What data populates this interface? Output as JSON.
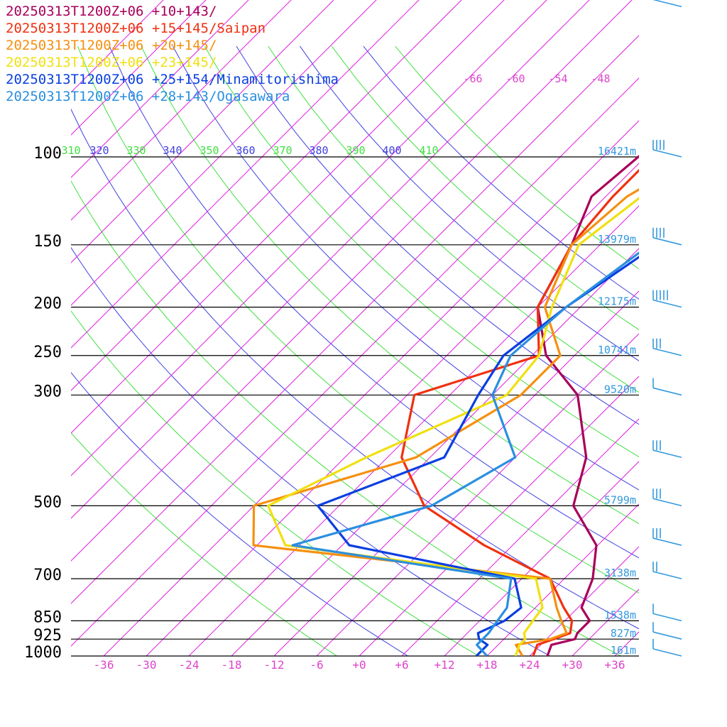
{
  "chart_data": {
    "type": "line",
    "title": "",
    "xlabel": "",
    "ylabel": "",
    "xlim": [
      -38,
      40
    ],
    "y_scale": "log-pressure",
    "pressure_levels": [
      {
        "p": 100,
        "label": "100",
        "height": "16421m"
      },
      {
        "p": 150,
        "label": "150",
        "height": "13979m"
      },
      {
        "p": 200,
        "label": "200",
        "height": "12175m"
      },
      {
        "p": 250,
        "label": "250",
        "height": "10741m"
      },
      {
        "p": 300,
        "label": "300",
        "height": "9520m"
      },
      {
        "p": 500,
        "label": "500",
        "height": "5799m"
      },
      {
        "p": 700,
        "label": "700",
        "height": "3138m"
      },
      {
        "p": 850,
        "label": "850",
        "height": "1538m"
      },
      {
        "p": 925,
        "label": "925",
        "height": "827m"
      },
      {
        "p": 1000,
        "label": "1000",
        "height": "161m"
      }
    ],
    "x_ticks": [
      {
        "v": -36,
        "label": "-36"
      },
      {
        "v": -30,
        "label": "-30"
      },
      {
        "v": -24,
        "label": "-24"
      },
      {
        "v": -18,
        "label": "-18"
      },
      {
        "v": -12,
        "label": "-12"
      },
      {
        "v": -6,
        "label": "-6"
      },
      {
        "v": 0,
        "label": "+0"
      },
      {
        "v": 6,
        "label": "+6"
      },
      {
        "v": 12,
        "label": "+12"
      },
      {
        "v": 18,
        "label": "+18"
      },
      {
        "v": 24,
        "label": "+24"
      },
      {
        "v": 30,
        "label": "+30"
      },
      {
        "v": 36,
        "label": "+36"
      }
    ],
    "isotherm_top_labels": [
      "-66",
      "-60",
      "-54",
      "-48"
    ],
    "theta_labels": [
      "310",
      "320",
      "330",
      "340",
      "350",
      "360",
      "370",
      "380",
      "390",
      "400",
      "410"
    ],
    "colors": {
      "isotherm": "#e020e0",
      "theta_green": "#40e040",
      "theta_blue": "#4040e0",
      "isobar": "#000000",
      "height_label": "#3399dd",
      "wind_barb": "#3399dd",
      "tick_label": "#dd44cc"
    },
    "series": [
      {
        "name": "20250313T1200Z+06 +10+143/",
        "color": "#a8005a",
        "points": [
          [
            1000,
            26.5
          ],
          [
            950,
            25.5
          ],
          [
            925,
            28
          ],
          [
            900,
            27.5
          ],
          [
            850,
            27.5
          ],
          [
            800,
            24.5
          ],
          [
            700,
            22
          ],
          [
            600,
            17.8
          ],
          [
            500,
            9
          ],
          [
            400,
            4
          ],
          [
            300,
            -6
          ],
          [
            250,
            -16
          ],
          [
            200,
            -24
          ],
          [
            150,
            -28
          ],
          [
            120,
            -32
          ],
          [
            100,
            -31
          ],
          [
            80,
            -30
          ],
          [
            70,
            -28
          ],
          [
            60,
            -16
          ],
          [
            50,
            1
          ]
        ]
      },
      {
        "name": "20250313T1200Z+06 +15+145/Saipan",
        "color": "#f03010",
        "points": [
          [
            1000,
            24.5
          ],
          [
            950,
            23.5
          ],
          [
            925,
            25
          ],
          [
            900,
            26.5
          ],
          [
            850,
            25
          ],
          [
            800,
            22
          ],
          [
            700,
            16
          ],
          [
            600,
            2
          ],
          [
            500,
            -12
          ],
          [
            400,
            -22
          ],
          [
            300,
            -29
          ],
          [
            250,
            -17
          ],
          [
            200,
            -24
          ],
          [
            150,
            -28
          ],
          [
            120,
            -29
          ],
          [
            100,
            -29
          ],
          [
            80,
            -26
          ],
          [
            70,
            -20
          ],
          [
            60,
            -12
          ],
          [
            50,
            3
          ]
        ]
      },
      {
        "name": "20250313T1200Z+06 +20+145/",
        "color": "#f59010",
        "points": [
          [
            1000,
            23
          ],
          [
            950,
            20.5
          ],
          [
            925,
            24.5
          ],
          [
            900,
            26
          ],
          [
            850,
            23.5
          ],
          [
            800,
            21
          ],
          [
            700,
            16
          ],
          [
            600,
            -30.5
          ],
          [
            500,
            -36
          ],
          [
            400,
            -20
          ],
          [
            300,
            -14
          ],
          [
            250,
            -14
          ],
          [
            200,
            -23
          ],
          [
            150,
            -28
          ],
          [
            120,
            -27
          ],
          [
            100,
            -23
          ],
          [
            80,
            -14
          ],
          [
            70,
            -3
          ],
          [
            60,
            3
          ],
          [
            50,
            4
          ]
        ]
      },
      {
        "name": "20250313T1200Z+06 +23+145/",
        "color": "#f0e010",
        "points": [
          [
            1000,
            22
          ],
          [
            950,
            21
          ],
          [
            925,
            21
          ],
          [
            900,
            20
          ],
          [
            850,
            19.5
          ],
          [
            800,
            19
          ],
          [
            700,
            14
          ],
          [
            600,
            -26
          ],
          [
            500,
            -34
          ],
          [
            400,
            -27
          ],
          [
            300,
            -16
          ],
          [
            250,
            -17
          ],
          [
            200,
            -22
          ],
          [
            150,
            -27
          ],
          [
            120,
            -25
          ],
          [
            100,
            -21
          ],
          [
            80,
            -8
          ],
          [
            70,
            0
          ],
          [
            60,
            6
          ],
          [
            50,
            5
          ]
        ]
      },
      {
        "name": "20250313T1200Z+06 +25+154/Minamitorishima",
        "color": "#0a3fe0",
        "points": [
          [
            1000,
            16.5
          ],
          [
            950,
            16.5
          ],
          [
            925,
            14.5
          ],
          [
            900,
            13.5
          ],
          [
            850,
            15.5
          ],
          [
            800,
            16
          ],
          [
            700,
            11
          ],
          [
            600,
            -17
          ],
          [
            500,
            -27
          ],
          [
            400,
            -16
          ],
          [
            300,
            -20
          ],
          [
            250,
            -22
          ],
          [
            200,
            -20
          ],
          [
            150,
            -16
          ],
          [
            120,
            -10
          ],
          [
            100,
            -7
          ],
          [
            80,
            3
          ],
          [
            70,
            5
          ],
          [
            60,
            7
          ],
          [
            50,
            9
          ]
        ]
      },
      {
        "name": "20250313T1200Z+06 +28+143/Ogasawara",
        "color": "#2b8fe0",
        "points": [
          [
            1000,
            18
          ],
          [
            950,
            15
          ],
          [
            925,
            15
          ],
          [
            900,
            15
          ],
          [
            850,
            14.5
          ],
          [
            800,
            14
          ],
          [
            700,
            10.5
          ],
          [
            600,
            -25
          ],
          [
            500,
            -11
          ],
          [
            400,
            -6
          ],
          [
            300,
            -18
          ],
          [
            250,
            -21
          ],
          [
            200,
            -20
          ],
          [
            150,
            -17
          ],
          [
            120,
            -12
          ],
          [
            100,
            -5
          ],
          [
            80,
            1
          ],
          [
            70,
            4
          ],
          [
            60,
            7
          ],
          [
            50,
            9
          ]
        ]
      }
    ]
  }
}
